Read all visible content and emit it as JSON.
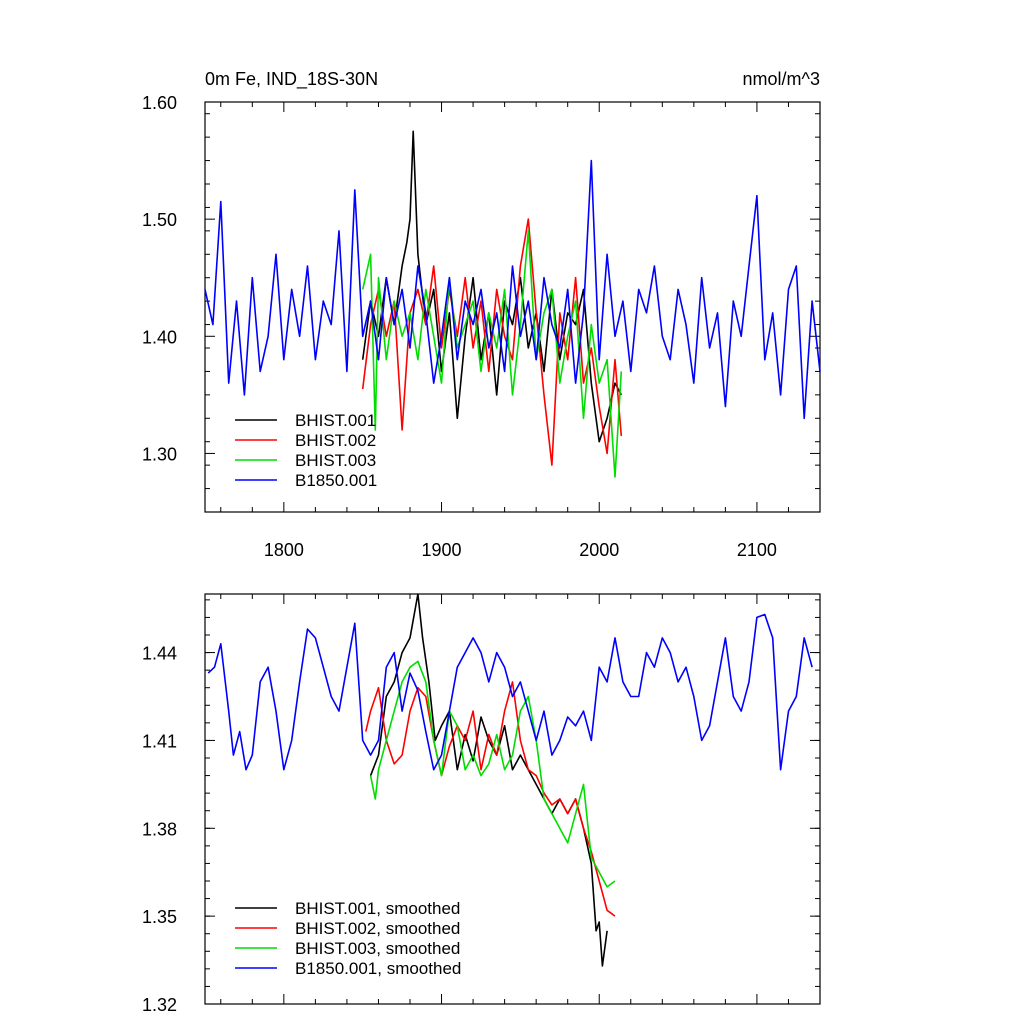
{
  "chart_data": [
    {
      "type": "line",
      "title_left": "0m Fe, IND_18S-30N",
      "title_right": "nmol/m^3",
      "xlim": [
        1750,
        2140
      ],
      "ylim": [
        1.25,
        1.6
      ],
      "xticks": [
        1800,
        1900,
        2000,
        2100
      ],
      "yticks": [
        1.3,
        1.4,
        1.5,
        1.6
      ],
      "ytick_labels": [
        "1.30",
        "1.40",
        "1.50",
        "1.60"
      ],
      "legend_position": "bottom-left",
      "series": [
        {
          "name": "BHIST.001",
          "color": "#000000",
          "x": [
            1850,
            1855,
            1860,
            1865,
            1870,
            1875,
            1878,
            1880,
            1882,
            1885,
            1890,
            1895,
            1900,
            1905,
            1910,
            1915,
            1920,
            1925,
            1930,
            1935,
            1940,
            1945,
            1950,
            1955,
            1960,
            1965,
            1970,
            1975,
            1980,
            1985,
            1990,
            1995,
            2000,
            2005,
            2010,
            2014
          ],
          "y": [
            1.38,
            1.43,
            1.4,
            1.45,
            1.41,
            1.46,
            1.48,
            1.5,
            1.575,
            1.47,
            1.41,
            1.44,
            1.37,
            1.42,
            1.33,
            1.4,
            1.45,
            1.38,
            1.42,
            1.35,
            1.43,
            1.41,
            1.45,
            1.39,
            1.42,
            1.37,
            1.44,
            1.38,
            1.42,
            1.41,
            1.44,
            1.36,
            1.31,
            1.33,
            1.36,
            1.35
          ]
        },
        {
          "name": "BHIST.002",
          "color": "#ff0000",
          "x": [
            1850,
            1855,
            1860,
            1865,
            1870,
            1875,
            1880,
            1885,
            1890,
            1895,
            1900,
            1905,
            1910,
            1915,
            1920,
            1925,
            1930,
            1935,
            1940,
            1945,
            1950,
            1955,
            1960,
            1965,
            1970,
            1975,
            1980,
            1985,
            1990,
            1995,
            2000,
            2005,
            2010,
            2014
          ],
          "y": [
            1.355,
            1.41,
            1.44,
            1.4,
            1.43,
            1.32,
            1.42,
            1.44,
            1.41,
            1.46,
            1.39,
            1.44,
            1.4,
            1.45,
            1.39,
            1.43,
            1.37,
            1.44,
            1.4,
            1.38,
            1.46,
            1.5,
            1.42,
            1.35,
            1.29,
            1.42,
            1.38,
            1.45,
            1.36,
            1.39,
            1.34,
            1.3,
            1.38,
            1.315
          ]
        },
        {
          "name": "BHIST.003",
          "color": "#00dd00",
          "x": [
            1850,
            1855,
            1858,
            1860,
            1865,
            1870,
            1875,
            1880,
            1885,
            1890,
            1895,
            1900,
            1905,
            1910,
            1915,
            1920,
            1925,
            1930,
            1935,
            1940,
            1945,
            1950,
            1955,
            1960,
            1965,
            1970,
            1975,
            1980,
            1985,
            1990,
            1995,
            2000,
            2005,
            2010,
            2014
          ],
          "y": [
            1.44,
            1.47,
            1.32,
            1.45,
            1.38,
            1.43,
            1.4,
            1.42,
            1.38,
            1.44,
            1.4,
            1.36,
            1.45,
            1.39,
            1.41,
            1.43,
            1.37,
            1.42,
            1.39,
            1.44,
            1.35,
            1.41,
            1.49,
            1.38,
            1.42,
            1.44,
            1.36,
            1.4,
            1.43,
            1.33,
            1.41,
            1.36,
            1.38,
            1.28,
            1.37
          ]
        },
        {
          "name": "B1850.001",
          "color": "#0000ff",
          "x": [
            1750,
            1755,
            1760,
            1765,
            1770,
            1775,
            1780,
            1785,
            1790,
            1795,
            1800,
            1805,
            1810,
            1815,
            1820,
            1825,
            1830,
            1835,
            1840,
            1845,
            1850,
            1855,
            1860,
            1865,
            1870,
            1875,
            1880,
            1885,
            1890,
            1895,
            1900,
            1905,
            1910,
            1915,
            1920,
            1925,
            1930,
            1935,
            1940,
            1945,
            1950,
            1955,
            1960,
            1965,
            1970,
            1975,
            1980,
            1985,
            1990,
            1995,
            2000,
            2005,
            2010,
            2015,
            2020,
            2025,
            2030,
            2035,
            2040,
            2045,
            2050,
            2055,
            2060,
            2065,
            2070,
            2075,
            2080,
            2085,
            2090,
            2095,
            2100,
            2105,
            2110,
            2115,
            2120,
            2125,
            2130,
            2135,
            2140
          ],
          "y": [
            1.44,
            1.41,
            1.515,
            1.36,
            1.43,
            1.35,
            1.45,
            1.37,
            1.4,
            1.47,
            1.38,
            1.44,
            1.4,
            1.46,
            1.38,
            1.43,
            1.41,
            1.49,
            1.37,
            1.525,
            1.4,
            1.43,
            1.38,
            1.45,
            1.41,
            1.44,
            1.39,
            1.46,
            1.42,
            1.36,
            1.4,
            1.45,
            1.38,
            1.43,
            1.41,
            1.44,
            1.39,
            1.42,
            1.37,
            1.46,
            1.4,
            1.43,
            1.38,
            1.45,
            1.41,
            1.39,
            1.44,
            1.36,
            1.42,
            1.55,
            1.38,
            1.47,
            1.4,
            1.43,
            1.37,
            1.44,
            1.42,
            1.46,
            1.4,
            1.38,
            1.44,
            1.41,
            1.36,
            1.45,
            1.39,
            1.42,
            1.34,
            1.43,
            1.4,
            1.46,
            1.52,
            1.38,
            1.42,
            1.35,
            1.44,
            1.46,
            1.33,
            1.43,
            1.37
          ]
        }
      ]
    },
    {
      "type": "line",
      "xlim": [
        1750,
        2140
      ],
      "ylim": [
        1.32,
        1.46
      ],
      "xticks": [
        1800,
        1900,
        2000,
        2100
      ],
      "yticks": [
        1.32,
        1.35,
        1.38,
        1.41,
        1.44
      ],
      "ytick_labels": [
        "1.32",
        "1.35",
        "1.38",
        "1.41",
        "1.44"
      ],
      "legend_position": "bottom-left",
      "series": [
        {
          "name": "BHIST.001, smoothed",
          "color": "#000000",
          "x": [
            1855,
            1860,
            1865,
            1870,
            1875,
            1880,
            1885,
            1888,
            1892,
            1896,
            1900,
            1905,
            1910,
            1915,
            1920,
            1925,
            1930,
            1935,
            1940,
            1945,
            1950,
            1955,
            1960,
            1965,
            1970,
            1975,
            1980,
            1985,
            1990,
            1995,
            1998,
            2000,
            2002,
            2005
          ],
          "y": [
            1.398,
            1.405,
            1.425,
            1.43,
            1.44,
            1.445,
            1.46,
            1.445,
            1.43,
            1.41,
            1.415,
            1.42,
            1.4,
            1.412,
            1.403,
            1.418,
            1.41,
            1.405,
            1.415,
            1.4,
            1.405,
            1.4,
            1.395,
            1.39,
            1.385,
            1.39,
            1.385,
            1.39,
            1.38,
            1.368,
            1.345,
            1.348,
            1.333,
            1.345
          ]
        },
        {
          "name": "BHIST.002, smoothed",
          "color": "#ff0000",
          "x": [
            1852,
            1855,
            1860,
            1865,
            1870,
            1875,
            1880,
            1885,
            1890,
            1895,
            1900,
            1905,
            1910,
            1915,
            1920,
            1925,
            1930,
            1935,
            1940,
            1945,
            1950,
            1955,
            1960,
            1965,
            1970,
            1975,
            1980,
            1985,
            1990,
            1995,
            2000,
            2005,
            2010
          ],
          "y": [
            1.413,
            1.42,
            1.428,
            1.41,
            1.402,
            1.405,
            1.42,
            1.428,
            1.425,
            1.41,
            1.398,
            1.408,
            1.415,
            1.41,
            1.42,
            1.4,
            1.412,
            1.405,
            1.42,
            1.43,
            1.41,
            1.4,
            1.398,
            1.392,
            1.388,
            1.39,
            1.385,
            1.39,
            1.38,
            1.372,
            1.362,
            1.352,
            1.35
          ]
        },
        {
          "name": "BHIST.003, smoothed",
          "color": "#00dd00",
          "x": [
            1855,
            1858,
            1860,
            1865,
            1870,
            1875,
            1880,
            1885,
            1890,
            1895,
            1900,
            1905,
            1910,
            1915,
            1920,
            1925,
            1930,
            1935,
            1940,
            1945,
            1950,
            1955,
            1960,
            1965,
            1970,
            1975,
            1980,
            1985,
            1990,
            1995,
            2000,
            2005,
            2010
          ],
          "y": [
            1.398,
            1.39,
            1.4,
            1.41,
            1.42,
            1.43,
            1.435,
            1.437,
            1.43,
            1.41,
            1.398,
            1.42,
            1.415,
            1.4,
            1.405,
            1.398,
            1.402,
            1.412,
            1.4,
            1.405,
            1.42,
            1.425,
            1.41,
            1.39,
            1.385,
            1.38,
            1.375,
            1.385,
            1.395,
            1.37,
            1.365,
            1.36,
            1.362
          ]
        },
        {
          "name": "B1850.001, smoothed",
          "color": "#0000ff",
          "x": [
            1752,
            1756,
            1760,
            1765,
            1768,
            1772,
            1776,
            1780,
            1785,
            1790,
            1795,
            1800,
            1805,
            1810,
            1815,
            1820,
            1825,
            1830,
            1835,
            1840,
            1845,
            1850,
            1855,
            1860,
            1865,
            1870,
            1875,
            1880,
            1885,
            1890,
            1895,
            1900,
            1905,
            1910,
            1915,
            1920,
            1925,
            1930,
            1935,
            1940,
            1945,
            1950,
            1955,
            1960,
            1965,
            1970,
            1975,
            1980,
            1985,
            1990,
            1995,
            2000,
            2005,
            2010,
            2015,
            2020,
            2025,
            2030,
            2035,
            2040,
            2045,
            2050,
            2055,
            2060,
            2065,
            2070,
            2075,
            2080,
            2085,
            2090,
            2095,
            2100,
            2105,
            2110,
            2115,
            2120,
            2125,
            2130,
            2135
          ],
          "y": [
            1.433,
            1.435,
            1.443,
            1.42,
            1.405,
            1.413,
            1.4,
            1.405,
            1.43,
            1.435,
            1.42,
            1.4,
            1.41,
            1.43,
            1.448,
            1.445,
            1.435,
            1.425,
            1.42,
            1.435,
            1.45,
            1.41,
            1.405,
            1.41,
            1.435,
            1.44,
            1.42,
            1.433,
            1.427,
            1.413,
            1.4,
            1.405,
            1.42,
            1.435,
            1.44,
            1.445,
            1.44,
            1.43,
            1.44,
            1.435,
            1.425,
            1.43,
            1.42,
            1.41,
            1.42,
            1.405,
            1.41,
            1.418,
            1.415,
            1.42,
            1.41,
            1.435,
            1.43,
            1.445,
            1.43,
            1.425,
            1.425,
            1.44,
            1.435,
            1.445,
            1.44,
            1.43,
            1.435,
            1.425,
            1.41,
            1.415,
            1.43,
            1.445,
            1.425,
            1.42,
            1.43,
            1.452,
            1.453,
            1.445,
            1.4,
            1.42,
            1.425,
            1.445,
            1.435
          ]
        }
      ]
    }
  ]
}
